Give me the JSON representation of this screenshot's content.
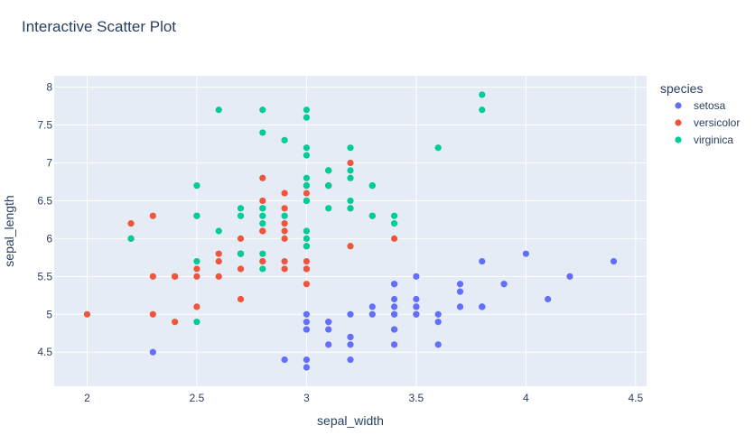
{
  "chart_data": {
    "type": "scatter",
    "title": "Interactive Scatter Plot",
    "xlabel": "sepal_width",
    "ylabel": "sepal_length",
    "xlim": [
      1.85,
      4.55
    ],
    "ylim": [
      4.05,
      8.15
    ],
    "x_ticks": [
      2,
      2.5,
      3,
      3.5,
      4,
      4.5
    ],
    "y_ticks": [
      4.5,
      5,
      5.5,
      6,
      6.5,
      7,
      7.5,
      8
    ],
    "grid": true,
    "legend_title": "species",
    "legend_position": "right",
    "background": "#e5ecf6",
    "series": [
      {
        "name": "setosa",
        "color": "#636efa",
        "points": [
          [
            3.5,
            5.1
          ],
          [
            3.0,
            4.9
          ],
          [
            3.2,
            4.7
          ],
          [
            3.1,
            4.6
          ],
          [
            3.6,
            5.0
          ],
          [
            3.9,
            5.4
          ],
          [
            3.4,
            4.6
          ],
          [
            3.4,
            5.0
          ],
          [
            2.9,
            4.4
          ],
          [
            3.1,
            4.9
          ],
          [
            3.7,
            5.4
          ],
          [
            3.4,
            4.8
          ],
          [
            3.0,
            4.8
          ],
          [
            3.0,
            4.3
          ],
          [
            4.0,
            5.8
          ],
          [
            4.4,
            5.7
          ],
          [
            3.9,
            5.4
          ],
          [
            3.5,
            5.1
          ],
          [
            3.8,
            5.7
          ],
          [
            3.8,
            5.1
          ],
          [
            3.4,
            5.4
          ],
          [
            3.7,
            5.1
          ],
          [
            3.6,
            4.6
          ],
          [
            3.3,
            5.1
          ],
          [
            3.4,
            4.8
          ],
          [
            3.0,
            5.0
          ],
          [
            3.4,
            5.0
          ],
          [
            3.5,
            5.2
          ],
          [
            3.4,
            5.2
          ],
          [
            3.2,
            4.7
          ],
          [
            3.1,
            4.8
          ],
          [
            3.4,
            5.4
          ],
          [
            4.1,
            5.2
          ],
          [
            4.2,
            5.5
          ],
          [
            3.1,
            4.9
          ],
          [
            3.2,
            5.0
          ],
          [
            3.5,
            5.5
          ],
          [
            3.6,
            4.9
          ],
          [
            3.0,
            4.4
          ],
          [
            3.4,
            5.1
          ],
          [
            3.5,
            5.0
          ],
          [
            2.3,
            4.5
          ],
          [
            3.2,
            4.4
          ],
          [
            3.5,
            5.0
          ],
          [
            3.8,
            5.1
          ],
          [
            3.0,
            4.8
          ],
          [
            3.8,
            5.1
          ],
          [
            3.2,
            4.6
          ],
          [
            3.7,
            5.3
          ],
          [
            3.3,
            5.0
          ]
        ]
      },
      {
        "name": "versicolor",
        "color": "#ef553b",
        "points": [
          [
            3.2,
            7.0
          ],
          [
            3.2,
            6.4
          ],
          [
            3.1,
            6.9
          ],
          [
            2.3,
            5.5
          ],
          [
            2.8,
            6.5
          ],
          [
            2.8,
            5.7
          ],
          [
            3.3,
            6.3
          ],
          [
            2.4,
            4.9
          ],
          [
            2.9,
            6.6
          ],
          [
            2.7,
            5.2
          ],
          [
            2.0,
            5.0
          ],
          [
            3.0,
            5.9
          ],
          [
            2.2,
            6.0
          ],
          [
            2.9,
            6.1
          ],
          [
            2.9,
            5.6
          ],
          [
            3.1,
            6.7
          ],
          [
            3.0,
            5.6
          ],
          [
            2.7,
            5.8
          ],
          [
            2.2,
            6.2
          ],
          [
            2.5,
            5.6
          ],
          [
            3.2,
            5.9
          ],
          [
            2.8,
            6.1
          ],
          [
            2.5,
            6.3
          ],
          [
            2.8,
            6.1
          ],
          [
            2.9,
            6.4
          ],
          [
            3.0,
            6.6
          ],
          [
            2.8,
            6.8
          ],
          [
            3.0,
            6.7
          ],
          [
            2.9,
            6.0
          ],
          [
            2.6,
            5.7
          ],
          [
            2.4,
            5.5
          ],
          [
            2.4,
            5.5
          ],
          [
            2.7,
            5.8
          ],
          [
            2.7,
            6.0
          ],
          [
            3.0,
            5.4
          ],
          [
            3.4,
            6.0
          ],
          [
            3.1,
            6.7
          ],
          [
            2.3,
            6.3
          ],
          [
            3.0,
            5.6
          ],
          [
            2.5,
            5.5
          ],
          [
            2.6,
            5.5
          ],
          [
            3.0,
            6.1
          ],
          [
            2.6,
            5.8
          ],
          [
            2.3,
            5.0
          ],
          [
            2.7,
            5.6
          ],
          [
            3.0,
            5.7
          ],
          [
            2.9,
            5.7
          ],
          [
            2.9,
            6.2
          ],
          [
            2.5,
            5.1
          ],
          [
            2.8,
            5.7
          ]
        ]
      },
      {
        "name": "virginica",
        "color": "#00cc96",
        "points": [
          [
            3.3,
            6.3
          ],
          [
            2.7,
            5.8
          ],
          [
            3.0,
            7.1
          ],
          [
            2.9,
            6.3
          ],
          [
            3.0,
            6.5
          ],
          [
            3.0,
            7.6
          ],
          [
            2.5,
            4.9
          ],
          [
            2.9,
            7.3
          ],
          [
            2.5,
            6.7
          ],
          [
            3.6,
            7.2
          ],
          [
            3.2,
            6.5
          ],
          [
            2.7,
            6.4
          ],
          [
            3.0,
            6.8
          ],
          [
            2.5,
            5.7
          ],
          [
            2.8,
            5.8
          ],
          [
            3.2,
            6.4
          ],
          [
            3.0,
            6.5
          ],
          [
            3.8,
            7.7
          ],
          [
            2.6,
            7.7
          ],
          [
            2.2,
            6.0
          ],
          [
            3.2,
            6.9
          ],
          [
            2.8,
            5.6
          ],
          [
            2.8,
            7.7
          ],
          [
            2.7,
            6.3
          ],
          [
            3.3,
            6.7
          ],
          [
            3.2,
            7.2
          ],
          [
            2.8,
            6.2
          ],
          [
            3.0,
            6.1
          ],
          [
            2.8,
            6.4
          ],
          [
            3.0,
            7.2
          ],
          [
            2.8,
            7.4
          ],
          [
            3.8,
            7.9
          ],
          [
            2.8,
            6.4
          ],
          [
            2.8,
            6.3
          ],
          [
            2.6,
            6.1
          ],
          [
            3.0,
            7.7
          ],
          [
            3.4,
            6.3
          ],
          [
            3.1,
            6.4
          ],
          [
            3.0,
            6.0
          ],
          [
            3.1,
            6.9
          ],
          [
            3.1,
            6.7
          ],
          [
            3.1,
            6.9
          ],
          [
            2.7,
            5.8
          ],
          [
            3.2,
            6.8
          ],
          [
            3.3,
            6.7
          ],
          [
            3.0,
            6.7
          ],
          [
            2.5,
            6.3
          ],
          [
            3.0,
            6.5
          ],
          [
            3.4,
            6.2
          ],
          [
            3.0,
            5.9
          ]
        ]
      }
    ]
  }
}
